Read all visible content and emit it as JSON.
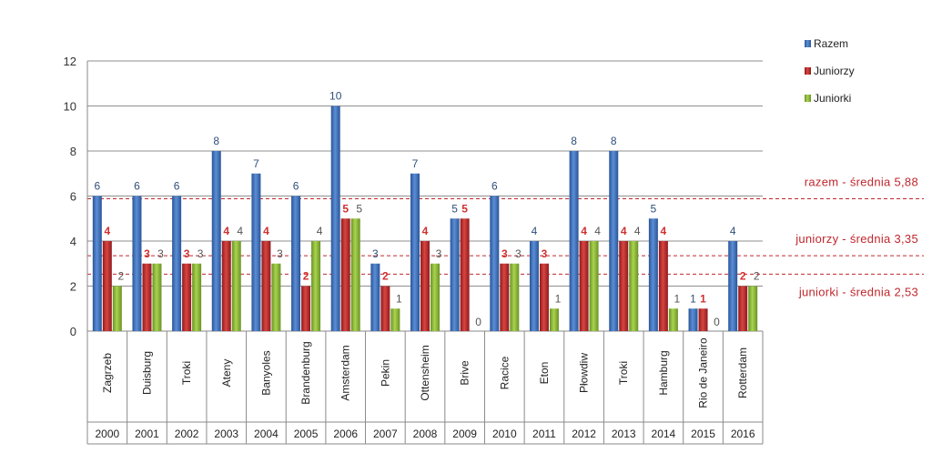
{
  "chart_data": {
    "type": "bar",
    "categories": [
      "Zagrzeb",
      "Duisburg",
      "Troki",
      "Ateny",
      "Banyoles",
      "Brandenburg",
      "Amsterdam",
      "Pekin",
      "Ottensheim",
      "Brive",
      "Racice",
      "Eton",
      "Płowdiw",
      "Troki",
      "Hamburg",
      "Rio de Janeiro",
      "Rotterdam"
    ],
    "years": [
      "2000",
      "2001",
      "2002",
      "2003",
      "2004",
      "2005",
      "2006",
      "2007",
      "2008",
      "2009",
      "2010",
      "2011",
      "2012",
      "2013",
      "2014",
      "2015",
      "2016"
    ],
    "series": [
      {
        "name": "Razem",
        "color": "#3d6db5",
        "label_color": "#2f4f7a",
        "values": [
          6,
          6,
          6,
          8,
          7,
          6,
          10,
          3,
          7,
          5,
          6,
          4,
          8,
          8,
          5,
          1,
          4
        ]
      },
      {
        "name": "Juniorzy",
        "color": "#c0272d",
        "label_color": "#d03030",
        "values": [
          4,
          3,
          3,
          4,
          4,
          2,
          5,
          2,
          4,
          5,
          3,
          3,
          4,
          4,
          4,
          1,
          2
        ]
      },
      {
        "name": "Juniorki",
        "color": "#8cb83a",
        "label_color": "#555555",
        "values": [
          2,
          3,
          3,
          4,
          3,
          4,
          5,
          1,
          3,
          0,
          3,
          1,
          4,
          4,
          1,
          0,
          2
        ]
      }
    ],
    "ylim": [
      0,
      12
    ],
    "yticks": [
      "0",
      "2",
      "4",
      "6",
      "8",
      "10",
      "12"
    ],
    "grid": true,
    "legend_position": "top-right",
    "averages": [
      {
        "label": "razem - średnia 5,88",
        "value": 5.88
      },
      {
        "label": "juniorzy - średnia 3,35",
        "value": 3.35
      },
      {
        "label": "juniorki - średnia 2,53",
        "value": 2.53
      }
    ],
    "average_color": "#c0272d"
  }
}
